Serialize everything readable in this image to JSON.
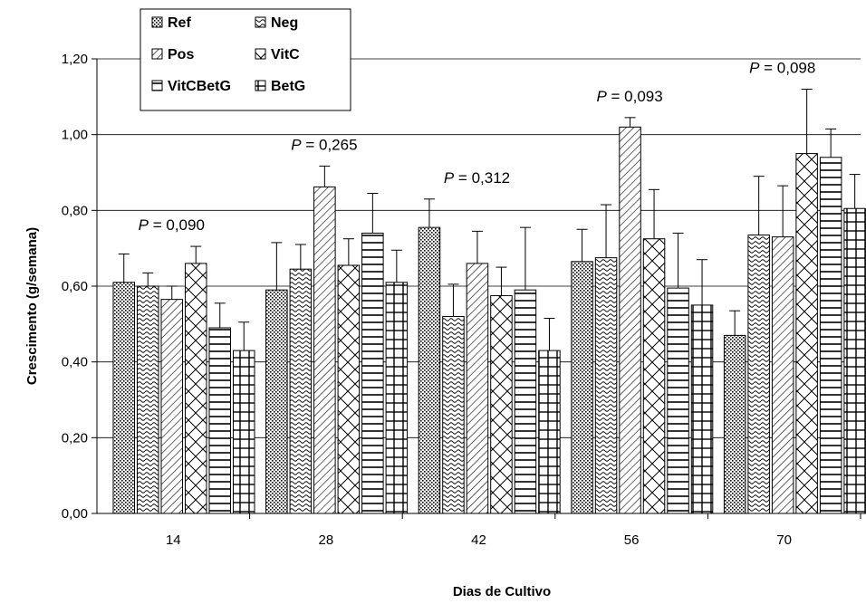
{
  "chart_data": {
    "type": "bar",
    "title": "",
    "xlabel": "Dias de Cultivo",
    "ylabel": "Crescimento (g/semana)",
    "ylim": [
      0,
      1.2
    ],
    "yticks": [
      "0,00",
      "0,20",
      "0,40",
      "0,60",
      "0,80",
      "1,00",
      "1,20"
    ],
    "categories": [
      "14",
      "28",
      "42",
      "56",
      "70"
    ],
    "grid": true,
    "legend_position": "top-left",
    "p_values": [
      "0,090",
      "0,265",
      "0,312",
      "0,093",
      "0,098"
    ],
    "p_prefix": "P",
    "p_sep": " = ",
    "series": [
      {
        "name": "Ref",
        "pattern": "dots",
        "values": [
          0.61,
          0.59,
          0.755,
          0.665,
          0.47
        ],
        "errors": [
          0.075,
          0.125,
          0.075,
          0.085,
          0.065
        ]
      },
      {
        "name": "Neg",
        "pattern": "waves",
        "values": [
          0.6,
          0.645,
          0.52,
          0.675,
          0.735
        ],
        "errors": [
          0.035,
          0.065,
          0.085,
          0.14,
          0.155
        ]
      },
      {
        "name": "Pos",
        "pattern": "diagonal",
        "values": [
          0.565,
          0.862,
          0.66,
          1.02,
          0.73
        ],
        "errors": [
          0.035,
          0.055,
          0.085,
          0.025,
          0.135
        ]
      },
      {
        "name": "VitC",
        "pattern": "crosshatch",
        "values": [
          0.66,
          0.655,
          0.575,
          0.725,
          0.95
        ],
        "errors": [
          0.045,
          0.07,
          0.075,
          0.13,
          0.17
        ]
      },
      {
        "name": "VitCBetG",
        "pattern": "hlines",
        "values": [
          0.49,
          0.74,
          0.59,
          0.595,
          0.94
        ],
        "errors": [
          0.065,
          0.105,
          0.165,
          0.145,
          0.075
        ]
      },
      {
        "name": "BetG",
        "pattern": "grid",
        "values": [
          0.43,
          0.61,
          0.43,
          0.55,
          0.805
        ],
        "errors": [
          0.075,
          0.085,
          0.085,
          0.12,
          0.09
        ]
      }
    ]
  }
}
